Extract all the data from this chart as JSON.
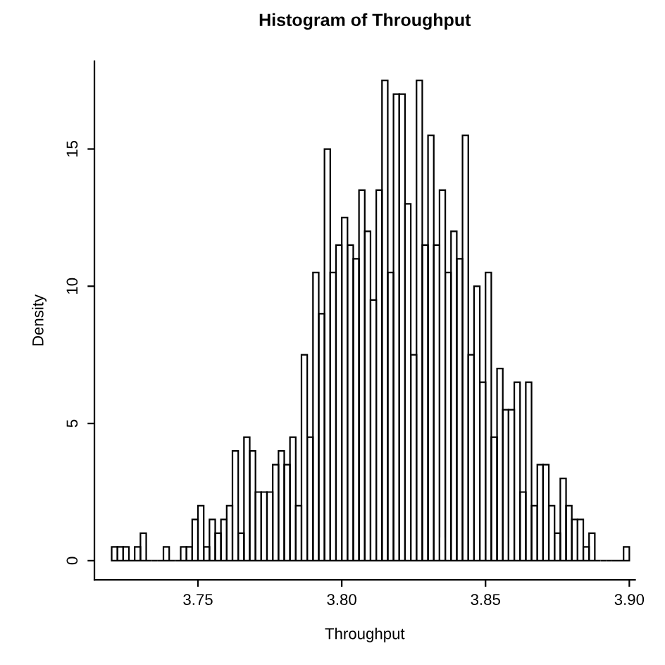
{
  "chart_data": {
    "type": "histogram",
    "title": "Histogram of Throughput",
    "xlabel": "Throughput",
    "ylabel": "Density",
    "bins": [
      3.72,
      3.722,
      3.724,
      3.726,
      3.728,
      3.73,
      3.732,
      3.734,
      3.736,
      3.738,
      3.74,
      3.742,
      3.744,
      3.746,
      3.748,
      3.75,
      3.752,
      3.754,
      3.756,
      3.758,
      3.76,
      3.762,
      3.764,
      3.766,
      3.768,
      3.77,
      3.772,
      3.774,
      3.776,
      3.778,
      3.78,
      3.782,
      3.784,
      3.786,
      3.788,
      3.79,
      3.792,
      3.794,
      3.796,
      3.798,
      3.8,
      3.802,
      3.804,
      3.806,
      3.808,
      3.81,
      3.812,
      3.814,
      3.816,
      3.818,
      3.82,
      3.822,
      3.824,
      3.826,
      3.828,
      3.83,
      3.832,
      3.834,
      3.836,
      3.838,
      3.84,
      3.842,
      3.844,
      3.846,
      3.848,
      3.85,
      3.852,
      3.854,
      3.856,
      3.858,
      3.86,
      3.862,
      3.864,
      3.866,
      3.868,
      3.87,
      3.872,
      3.874,
      3.876,
      3.878,
      3.88,
      3.882,
      3.884,
      3.886,
      3.888,
      3.89,
      3.892,
      3.894,
      3.896,
      3.898,
      3.9
    ],
    "values": [
      0.5,
      0.5,
      0.5,
      0,
      0.5,
      1.0,
      0,
      0,
      0,
      0.5,
      0,
      0,
      0.5,
      0.5,
      1.5,
      2,
      0.5,
      1.5,
      1,
      1.5,
      2,
      4,
      1,
      4.5,
      4,
      2.5,
      2.5,
      2.5,
      3.5,
      4,
      3.5,
      4.5,
      2,
      7.5,
      4.5,
      10.5,
      9,
      15,
      10.5,
      11.5,
      12.5,
      11.5,
      11,
      13.5,
      12,
      9.5,
      13.5,
      17.5,
      10.5,
      17,
      17,
      13,
      7.5,
      17.5,
      11.5,
      15.5,
      11.5,
      13.5,
      10.5,
      12,
      11,
      15.5,
      7.5,
      10,
      6.5,
      10.5,
      4.5,
      7,
      5.5,
      5.5,
      6.5,
      2.5,
      6.5,
      2,
      3.5,
      3.5,
      2,
      1,
      3,
      2,
      1.5,
      1.5,
      0.5,
      1,
      0,
      0,
      0,
      0,
      0,
      0.5
    ],
    "color": "#000000",
    "xlim": [
      3.714,
      3.902
    ],
    "ylim": [
      -0.7,
      18.2
    ],
    "xticks": [
      3.75,
      {
        "value": 3.8,
        "label": "3.80"
      },
      3.85,
      {
        "value": 3.9,
        "label": "3.90"
      }
    ],
    "yticks": [
      0,
      5,
      10,
      15
    ]
  }
}
